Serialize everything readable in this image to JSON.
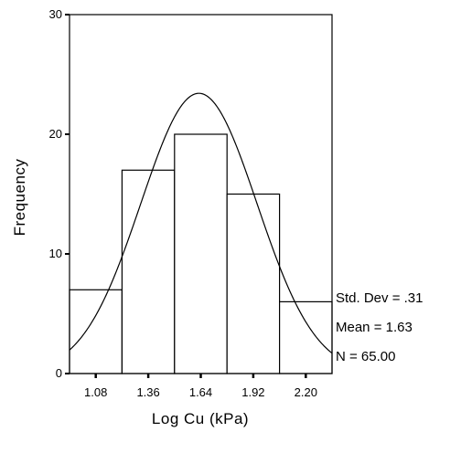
{
  "chart_data": {
    "type": "bar",
    "subtype": "histogram-with-normal-curve",
    "x_bin_centers": [
      1.08,
      1.36,
      1.64,
      1.92,
      2.2
    ],
    "x_tick_labels": [
      "1.08",
      "1.36",
      "1.64",
      "1.92",
      "2.20"
    ],
    "values": [
      7,
      17,
      20,
      15,
      6
    ],
    "bin_width": 0.28,
    "xlabel": "Log Cu (kPa)",
    "ylabel": "Frequency",
    "ylim": [
      0,
      30
    ],
    "y_ticks": [
      0,
      10,
      20,
      30
    ],
    "xlim": [
      0.94,
      2.34
    ],
    "grid": false,
    "normal_curve": {
      "mean": 1.63,
      "std_dev": 0.31,
      "n": 65
    },
    "stats": {
      "std_dev_label": "Std. Dev = .31",
      "mean_label": "Mean = 1.63",
      "n_label": "N = 65.00"
    }
  }
}
